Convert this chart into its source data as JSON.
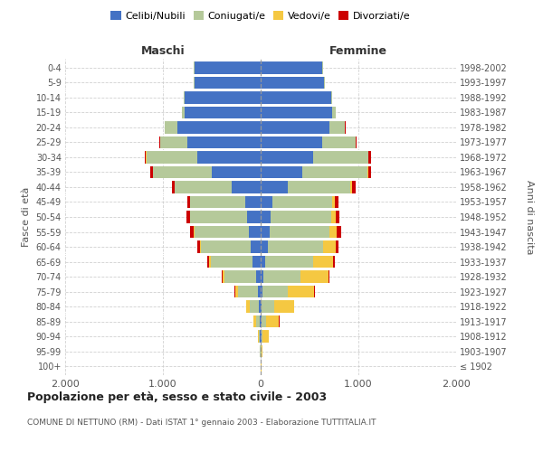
{
  "age_groups": [
    "100+",
    "95-99",
    "90-94",
    "85-89",
    "80-84",
    "75-79",
    "70-74",
    "65-69",
    "60-64",
    "55-59",
    "50-54",
    "45-49",
    "40-44",
    "35-39",
    "30-34",
    "25-29",
    "20-24",
    "15-19",
    "10-14",
    "5-9",
    "0-4"
  ],
  "birth_years": [
    "≤ 1902",
    "1903-1907",
    "1908-1912",
    "1913-1917",
    "1918-1922",
    "1923-1927",
    "1928-1932",
    "1933-1937",
    "1938-1942",
    "1943-1947",
    "1948-1952",
    "1953-1957",
    "1958-1962",
    "1963-1967",
    "1968-1972",
    "1973-1977",
    "1978-1982",
    "1983-1987",
    "1988-1992",
    "1993-1997",
    "1998-2002"
  ],
  "maschi_celibi": [
    2,
    2,
    5,
    10,
    15,
    30,
    50,
    80,
    100,
    120,
    140,
    160,
    300,
    500,
    650,
    750,
    850,
    780,
    780,
    680,
    680
  ],
  "maschi_coniugati": [
    2,
    4,
    15,
    40,
    100,
    200,
    320,
    430,
    510,
    560,
    580,
    560,
    580,
    600,
    520,
    280,
    130,
    30,
    10,
    5,
    5
  ],
  "maschi_vedovi": [
    0,
    0,
    10,
    20,
    30,
    30,
    20,
    15,
    10,
    8,
    5,
    3,
    2,
    2,
    2,
    2,
    2,
    0,
    0,
    0,
    0
  ],
  "maschi_divorziati": [
    0,
    0,
    0,
    2,
    3,
    5,
    10,
    20,
    30,
    35,
    35,
    30,
    30,
    25,
    15,
    5,
    3,
    0,
    0,
    0,
    0
  ],
  "femmine_celibi": [
    2,
    3,
    5,
    8,
    10,
    20,
    30,
    50,
    70,
    90,
    100,
    120,
    280,
    430,
    540,
    630,
    700,
    730,
    720,
    650,
    630
  ],
  "femmine_coniugati": [
    2,
    5,
    15,
    50,
    130,
    260,
    380,
    490,
    570,
    610,
    620,
    610,
    640,
    660,
    560,
    340,
    160,
    40,
    15,
    5,
    5
  ],
  "femmine_vedovi": [
    3,
    10,
    60,
    130,
    200,
    270,
    280,
    200,
    130,
    80,
    50,
    30,
    15,
    10,
    5,
    3,
    2,
    0,
    0,
    0,
    0
  ],
  "femmine_divorziati": [
    0,
    0,
    2,
    3,
    5,
    8,
    15,
    20,
    30,
    40,
    40,
    35,
    35,
    30,
    20,
    8,
    5,
    0,
    0,
    0,
    0
  ],
  "color_celibi": "#4472C4",
  "color_coniugati": "#b5c99a",
  "color_vedovi": "#f5c842",
  "color_divorziati": "#cc0000",
  "title": "Popolazione per età, sesso e stato civile - 2003",
  "subtitle": "COMUNE DI NETTUNO (RM) - Dati ISTAT 1° gennaio 2003 - Elaborazione TUTTITALIA.IT",
  "xlabel_maschi": "Maschi",
  "xlabel_femmine": "Femmine",
  "ylabel_left": "Fasce di età",
  "ylabel_right": "Anni di nascita",
  "xlim": 2000,
  "xtick_vals": [
    -2000,
    -1000,
    0,
    1000,
    2000
  ],
  "xtick_labels": [
    "2.000",
    "1.000",
    "0",
    "1.000",
    "2.000"
  ],
  "bg_color": "#ffffff",
  "grid_color": "#cccccc",
  "legend_labels": [
    "Celibi/Nubili",
    "Coniugati/e",
    "Vedovi/e",
    "Divorziati/e"
  ]
}
